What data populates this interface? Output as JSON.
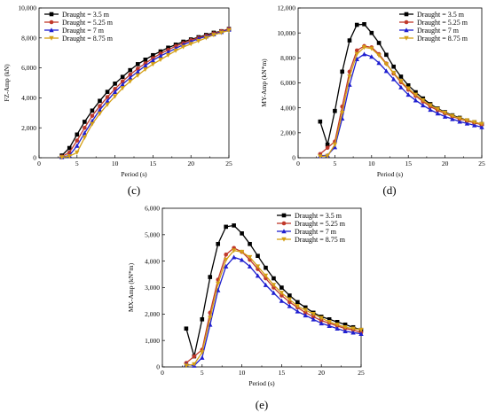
{
  "chart_data": [
    {
      "type": "line",
      "caption": "(c)",
      "xlabel": "Period (s)",
      "ylabel": "FZ-Amp (kN)",
      "xlim": [
        0,
        25
      ],
      "ylim": [
        0,
        10000
      ],
      "xticks": [
        0,
        5,
        10,
        15,
        20,
        25
      ],
      "yticks": [
        0,
        2000,
        4000,
        6000,
        8000,
        10000
      ],
      "ytick_labels": [
        "0",
        "2,000",
        "4,000",
        "6,000",
        "8,000",
        "10,000"
      ],
      "legend_position": "top-left",
      "series": [
        {
          "name": "Draught = 3.5 m",
          "color": "#000000",
          "marker": "square",
          "x": [
            3,
            4,
            5,
            6,
            7,
            8,
            9,
            10,
            11,
            12,
            13,
            14,
            15,
            16,
            17,
            18,
            19,
            20,
            21,
            22,
            23,
            24,
            25
          ],
          "y": [
            150,
            650,
            1550,
            2400,
            3150,
            3800,
            4400,
            4950,
            5400,
            5850,
            6250,
            6550,
            6850,
            7100,
            7350,
            7550,
            7750,
            7900,
            8050,
            8200,
            8350,
            8450,
            8600
          ]
        },
        {
          "name": "Draught = 5.25 m",
          "color": "#c0392b",
          "marker": "circle",
          "x": [
            3,
            4,
            5,
            6,
            7,
            8,
            9,
            10,
            11,
            12,
            13,
            14,
            15,
            16,
            17,
            18,
            19,
            20,
            21,
            22,
            23,
            24,
            25
          ],
          "y": [
            80,
            350,
            1150,
            2000,
            2800,
            3450,
            4050,
            4600,
            5100,
            5550,
            5950,
            6300,
            6650,
            6950,
            7200,
            7450,
            7650,
            7850,
            8000,
            8150,
            8300,
            8450,
            8600
          ]
        },
        {
          "name": "Draught = 7 m",
          "color": "#1f1fd0",
          "marker": "triangle-up",
          "x": [
            3,
            4,
            5,
            6,
            7,
            8,
            9,
            10,
            11,
            12,
            13,
            14,
            15,
            16,
            17,
            18,
            19,
            20,
            21,
            22,
            23,
            24,
            25
          ],
          "y": [
            50,
            150,
            800,
            1650,
            2450,
            3200,
            3800,
            4400,
            4900,
            5350,
            5750,
            6150,
            6500,
            6800,
            7050,
            7300,
            7550,
            7750,
            7950,
            8100,
            8250,
            8400,
            8550
          ]
        },
        {
          "name": "Draught = 8.75 m",
          "color": "#d4a017",
          "marker": "triangle-down",
          "x": [
            3,
            4,
            5,
            6,
            7,
            8,
            9,
            10,
            11,
            12,
            13,
            14,
            15,
            16,
            17,
            18,
            19,
            20,
            21,
            22,
            23,
            24,
            25
          ],
          "y": [
            30,
            100,
            350,
            1350,
            2250,
            2950,
            3550,
            4100,
            4650,
            5100,
            5500,
            5900,
            6250,
            6550,
            6850,
            7150,
            7400,
            7600,
            7800,
            8000,
            8200,
            8350,
            8500
          ]
        }
      ]
    },
    {
      "type": "line",
      "caption": "(d)",
      "xlabel": "Period (s)",
      "ylabel": "MY-Amp (kN*m)",
      "xlim": [
        0,
        25
      ],
      "ylim": [
        0,
        12000
      ],
      "xticks": [
        0,
        5,
        10,
        15,
        20,
        25
      ],
      "yticks": [
        0,
        2000,
        4000,
        6000,
        8000,
        10000,
        12000
      ],
      "ytick_labels": [
        "0",
        "2,000",
        "4,000",
        "6,000",
        "8,000",
        "10,000",
        "12,000"
      ],
      "legend_position": "top-right",
      "series": [
        {
          "name": "Draught = 3.5 m",
          "color": "#000000",
          "marker": "square",
          "x": [
            3,
            4,
            5,
            6,
            7,
            8,
            9,
            10,
            11,
            12,
            13,
            14,
            15,
            16,
            17,
            18,
            19,
            20,
            21,
            22,
            23,
            24,
            25
          ],
          "y": [
            2900,
            1050,
            3750,
            6900,
            9400,
            10650,
            10700,
            10000,
            9200,
            8250,
            7300,
            6500,
            5800,
            5250,
            4750,
            4300,
            3950,
            3650,
            3400,
            3200,
            3000,
            2850,
            2700
          ]
        },
        {
          "name": "Draught = 5.25 m",
          "color": "#c0392b",
          "marker": "circle",
          "x": [
            3,
            4,
            5,
            6,
            7,
            8,
            9,
            10,
            11,
            12,
            13,
            14,
            15,
            16,
            17,
            18,
            19,
            20,
            21,
            22,
            23,
            24,
            25
          ],
          "y": [
            300,
            800,
            1300,
            4100,
            6900,
            8600,
            8950,
            8850,
            8300,
            7550,
            6750,
            6050,
            5450,
            4950,
            4500,
            4100,
            3800,
            3550,
            3300,
            3100,
            2950,
            2800,
            2650
          ]
        },
        {
          "name": "Draught = 7 m",
          "color": "#1f1fd0",
          "marker": "triangle-up",
          "x": [
            3,
            4,
            5,
            6,
            7,
            8,
            9,
            10,
            11,
            12,
            13,
            14,
            15,
            16,
            17,
            18,
            19,
            20,
            21,
            22,
            23,
            24,
            25
          ],
          "y": [
            150,
            200,
            850,
            3150,
            5850,
            7900,
            8300,
            8100,
            7600,
            6950,
            6300,
            5650,
            5050,
            4600,
            4200,
            3850,
            3550,
            3300,
            3100,
            2900,
            2750,
            2600,
            2450
          ]
        },
        {
          "name": "Draught = 8.75 m",
          "color": "#d4a017",
          "marker": "triangle-down",
          "x": [
            3,
            4,
            5,
            6,
            7,
            8,
            9,
            10,
            11,
            12,
            13,
            14,
            15,
            16,
            17,
            18,
            19,
            20,
            21,
            22,
            23,
            24,
            25
          ],
          "y": [
            100,
            150,
            1050,
            3600,
            6500,
            8300,
            8850,
            8750,
            8200,
            7500,
            6800,
            6150,
            5550,
            5050,
            4600,
            4200,
            3900,
            3600,
            3350,
            3150,
            3000,
            2850,
            2700
          ]
        }
      ]
    },
    {
      "type": "line",
      "caption": "(e)",
      "xlabel": "Period (s)",
      "ylabel": "MX-Amp (kN*m)",
      "xlim": [
        0,
        25
      ],
      "ylim": [
        0,
        6000
      ],
      "xticks": [
        0,
        5,
        10,
        15,
        20,
        25
      ],
      "yticks": [
        0,
        1000,
        2000,
        3000,
        4000,
        5000,
        6000
      ],
      "ytick_labels": [
        "0",
        "1,000",
        "2,000",
        "3,000",
        "4,000",
        "5,000",
        "6,000"
      ],
      "legend_position": "top-right",
      "series": [
        {
          "name": "Draught = 3.5 m",
          "color": "#000000",
          "marker": "square",
          "x": [
            3,
            4,
            5,
            6,
            7,
            8,
            9,
            10,
            11,
            12,
            13,
            14,
            15,
            16,
            17,
            18,
            19,
            20,
            21,
            22,
            23,
            24,
            25
          ],
          "y": [
            1450,
            400,
            1800,
            3400,
            4650,
            5300,
            5350,
            5050,
            4650,
            4200,
            3750,
            3350,
            3000,
            2700,
            2450,
            2250,
            2050,
            1900,
            1800,
            1700,
            1600,
            1500,
            1400
          ]
        },
        {
          "name": "Draught = 5.25 m",
          "color": "#c0392b",
          "marker": "circle",
          "x": [
            3,
            4,
            5,
            6,
            7,
            8,
            9,
            10,
            11,
            12,
            13,
            14,
            15,
            16,
            17,
            18,
            19,
            20,
            21,
            22,
            23,
            24,
            25
          ],
          "y": [
            150,
            400,
            650,
            2050,
            3300,
            4250,
            4500,
            4350,
            4050,
            3700,
            3350,
            3000,
            2700,
            2450,
            2250,
            2050,
            1900,
            1750,
            1650,
            1550,
            1450,
            1400,
            1300
          ]
        },
        {
          "name": "Draught = 7 m",
          "color": "#1f1fd0",
          "marker": "triangle-up",
          "x": [
            3,
            4,
            5,
            6,
            7,
            8,
            9,
            10,
            11,
            12,
            13,
            14,
            15,
            16,
            17,
            18,
            19,
            20,
            21,
            22,
            23,
            24,
            25
          ],
          "y": [
            100,
            50,
            350,
            1600,
            2900,
            3800,
            4150,
            4050,
            3800,
            3450,
            3100,
            2800,
            2500,
            2300,
            2100,
            1950,
            1800,
            1650,
            1550,
            1450,
            1350,
            1300,
            1250
          ]
        },
        {
          "name": "Draught = 8.75 m",
          "color": "#d4a017",
          "marker": "triangle-down",
          "x": [
            3,
            4,
            5,
            6,
            7,
            8,
            9,
            10,
            11,
            12,
            13,
            14,
            15,
            16,
            17,
            18,
            19,
            20,
            21,
            22,
            23,
            24,
            25
          ],
          "y": [
            50,
            100,
            550,
            1850,
            3150,
            4050,
            4400,
            4350,
            4150,
            3800,
            3450,
            3100,
            2800,
            2550,
            2300,
            2150,
            2000,
            1850,
            1700,
            1600,
            1500,
            1450,
            1400
          ]
        }
      ]
    }
  ]
}
